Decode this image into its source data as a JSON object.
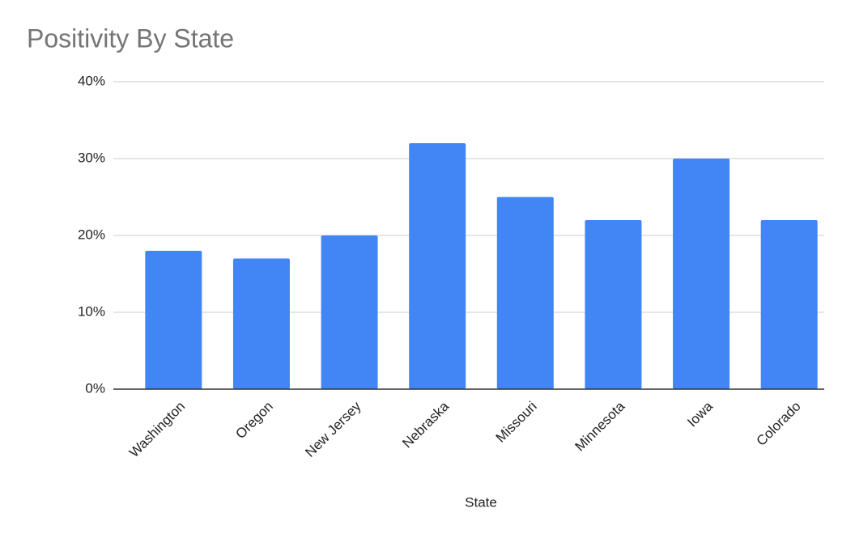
{
  "chart_data": {
    "type": "bar",
    "title": "Positivity By State",
    "x_label": "State",
    "categories": [
      "Washington",
      "Oregon",
      "New Jersey",
      "Nebraska",
      "Missouri",
      "Minnesota",
      "Iowa",
      "Colorado"
    ],
    "values": [
      18,
      17,
      20,
      32,
      25,
      22,
      30,
      22
    ],
    "color": "#4285f4",
    "ylim": [
      0,
      40
    ],
    "yticks": [
      {
        "value": 0,
        "label": "0%"
      },
      {
        "value": 10,
        "label": "10%"
      },
      {
        "value": 20,
        "label": "20%"
      },
      {
        "value": 30,
        "label": "30%"
      },
      {
        "value": 40,
        "label": "40%"
      }
    ],
    "grid": true
  }
}
